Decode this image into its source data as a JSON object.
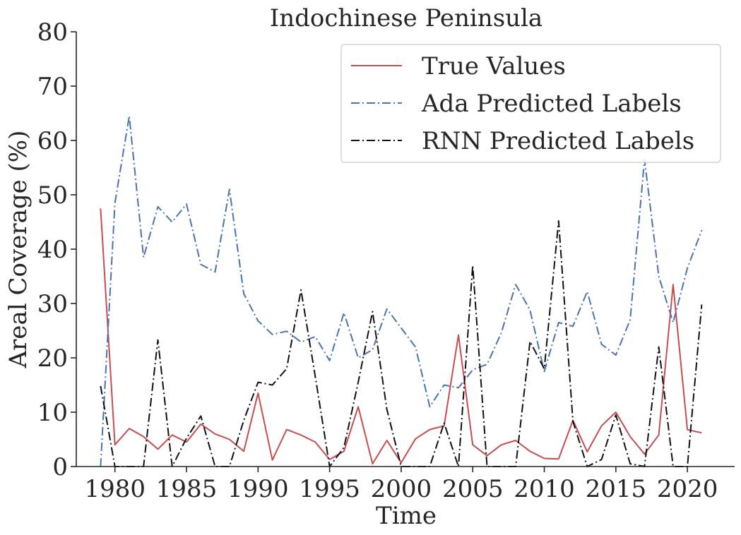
{
  "chart_data": {
    "type": "line",
    "title": "Indochinese Peninsula",
    "xlabel": "Time",
    "ylabel": "Areal Coverage (%)",
    "xlim": [
      1977.3,
      2023.3
    ],
    "ylim": [
      0,
      80
    ],
    "xticks": [
      1980,
      1985,
      1990,
      1995,
      2000,
      2005,
      2010,
      2015,
      2020
    ],
    "yticks": [
      0,
      10,
      20,
      30,
      40,
      50,
      60,
      70,
      80
    ],
    "legend_position": "top-right",
    "grid": false,
    "x": [
      1979,
      1980,
      1981,
      1982,
      1983,
      1984,
      1985,
      1986,
      1987,
      1988,
      1989,
      1990,
      1991,
      1992,
      1993,
      1994,
      1995,
      1996,
      1997,
      1998,
      1999,
      2000,
      2001,
      2002,
      2003,
      2004,
      2005,
      2006,
      2007,
      2008,
      2009,
      2010,
      2011,
      2012,
      2013,
      2014,
      2015,
      2016,
      2017,
      2018,
      2019,
      2020,
      2021
    ],
    "series": [
      {
        "name": "True Values",
        "color": "#c44e52",
        "dash": "solid",
        "values": [
          47.5,
          4.0,
          7.0,
          5.5,
          3.2,
          5.8,
          4.5,
          7.8,
          6.0,
          5.0,
          2.8,
          13.5,
          1.2,
          6.8,
          5.8,
          4.5,
          1.3,
          2.8,
          11.0,
          0.5,
          4.8,
          0.7,
          5.1,
          6.8,
          7.5,
          24.2,
          4.0,
          2.0,
          4.0,
          4.8,
          2.8,
          1.5,
          1.4,
          8.5,
          2.7,
          7.5,
          10.0,
          5.5,
          2.3,
          5.8,
          33.5,
          6.8,
          6.2
        ]
      },
      {
        "name": "Ada Predicted Labels",
        "color": "#4c72b0",
        "dash": "dashdot",
        "values": [
          0.0,
          48.5,
          64.5,
          38.5,
          47.8,
          45.0,
          48.3,
          37.2,
          35.8,
          51.0,
          31.8,
          26.8,
          24.3,
          24.9,
          22.9,
          23.9,
          19.5,
          28.3,
          20.0,
          21.5,
          29.0,
          25.5,
          22.0,
          11.0,
          15.0,
          14.5,
          17.8,
          18.8,
          24.6,
          33.5,
          28.8,
          17.5,
          26.5,
          25.8,
          32.2,
          22.5,
          20.5,
          27.0,
          56.5,
          35.0,
          26.5,
          36.5,
          43.5
        ]
      },
      {
        "name": "RNN Predicted Labels",
        "color": "#111111",
        "dash": "dashdot",
        "values": [
          14.8,
          0.0,
          0.0,
          0.0,
          23.3,
          0.0,
          5.2,
          9.3,
          0.0,
          0.0,
          8.5,
          15.5,
          15.0,
          18.0,
          32.5,
          16.5,
          0.0,
          3.5,
          15.5,
          28.5,
          10.5,
          0.0,
          0.0,
          0.0,
          8.0,
          0.0,
          37.0,
          0.0,
          0.0,
          0.0,
          23.0,
          18.0,
          45.2,
          8.3,
          0.0,
          1.3,
          9.5,
          0.5,
          0.0,
          22.0,
          0.0,
          0.0,
          29.8
        ]
      }
    ]
  }
}
